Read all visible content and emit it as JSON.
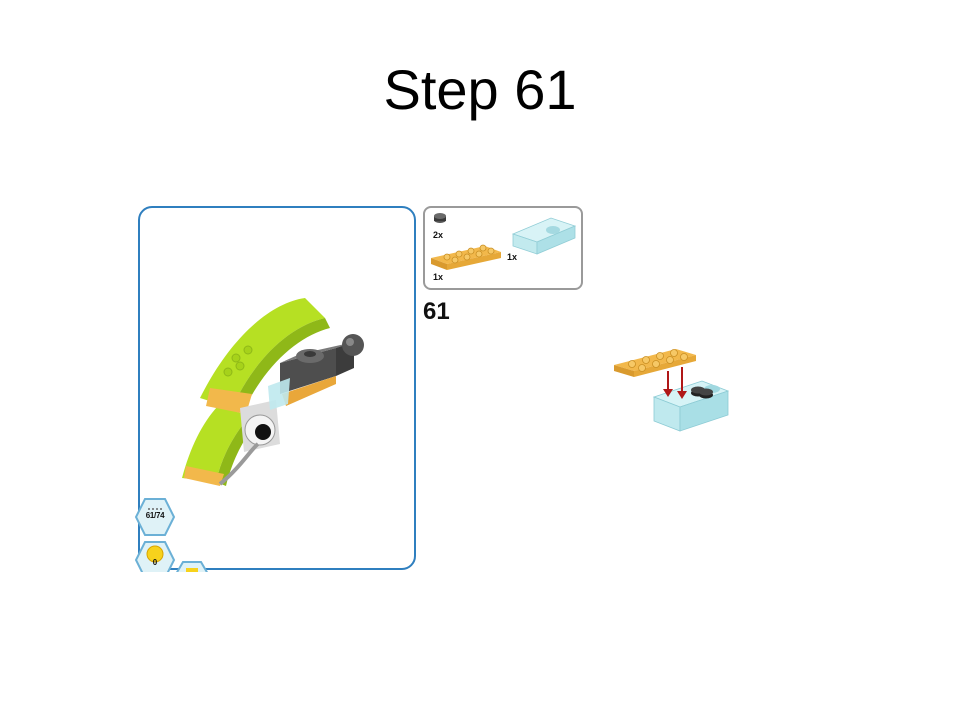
{
  "slide": {
    "title": "Step 61"
  },
  "instruction": {
    "step_number": "61",
    "progress": "61/74",
    "coins": "0",
    "parts": [
      {
        "name": "round-plate",
        "quantity": "2x",
        "color": "#3a3a3a"
      },
      {
        "name": "orange-plate-2x4",
        "quantity": "1x",
        "color": "#f2b84b"
      },
      {
        "name": "transparent-clip-brick",
        "quantity": "1x",
        "color": "#bfe9ee"
      }
    ]
  },
  "colors": {
    "panel_border": "#2f7fbf",
    "lime": "#b6e023",
    "orange": "#f2b84b",
    "dark_gray": "#5c5c5c",
    "trans_blue": "#bfe9ee",
    "arrow_red": "#b01818"
  }
}
